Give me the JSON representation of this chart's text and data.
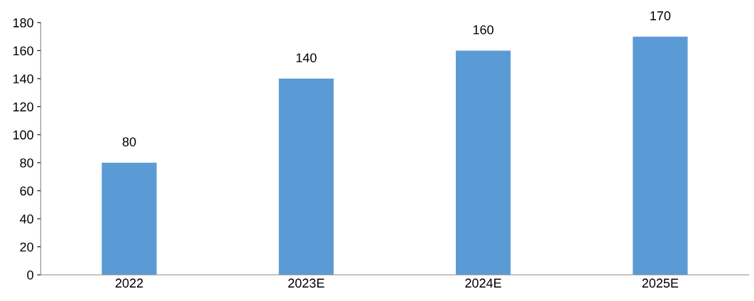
{
  "chart_data": {
    "type": "bar",
    "categories": [
      "2022",
      "2023E",
      "2024E",
      "2025E"
    ],
    "values": [
      80,
      140,
      160,
      170
    ],
    "color": "#5b9bd5",
    "ylim": [
      0,
      180
    ],
    "yticks": [
      0,
      20,
      40,
      60,
      80,
      100,
      120,
      140,
      160,
      180
    ],
    "data_labels": true,
    "grid": false
  }
}
